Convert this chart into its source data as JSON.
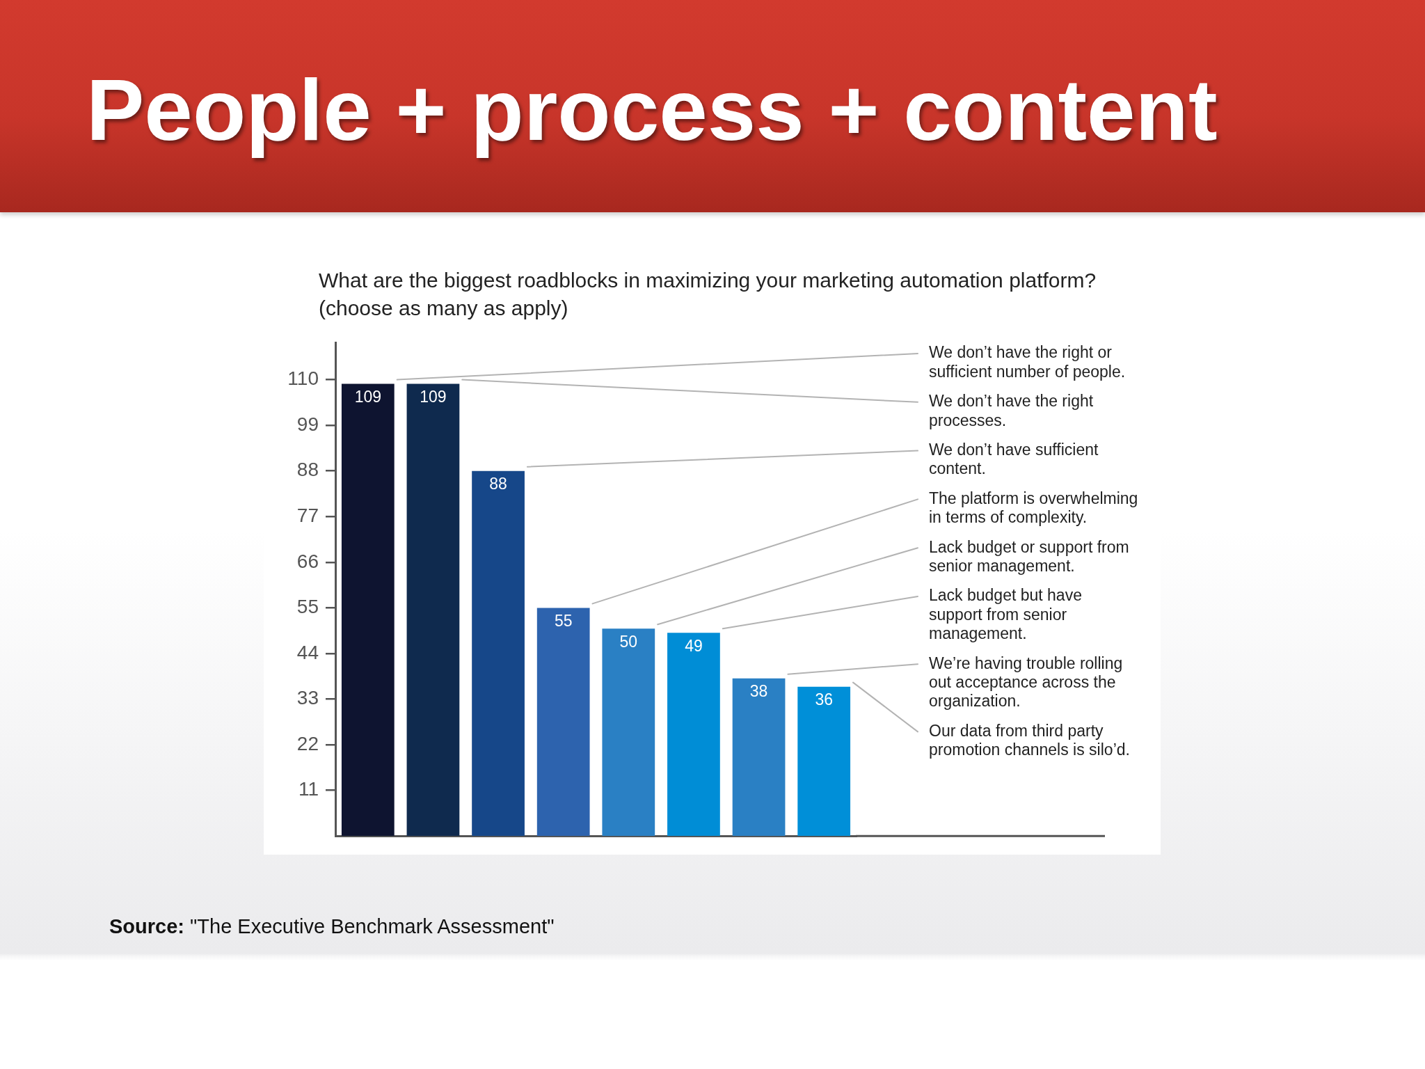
{
  "chart_data": {
    "type": "bar",
    "title": "People + process + content",
    "subtitle": "What are the biggest roadblocks in maximizing your marketing automation platform? (choose as many as apply)",
    "categories": [
      null,
      null,
      null,
      null,
      null,
      null,
      null,
      null
    ],
    "values": [
      109,
      109,
      88,
      55,
      50,
      49,
      38,
      36
    ],
    "colors": [
      "#0e1430",
      "#0f2a4e",
      "#164789",
      "#2d63ae",
      "#2a80c4",
      "#008dd6",
      "#2a80c4",
      "#008fd8"
    ],
    "ylim": [
      0,
      119
    ],
    "yticks": [
      11,
      22,
      33,
      44,
      55,
      66,
      77,
      88,
      99,
      110
    ],
    "grid": false,
    "legend": false,
    "data_labels": true,
    "annotations": [
      "We don’t have the right or sufficient number of people.",
      "We don’t have the right processes.",
      "We don’t have sufficient content.",
      "The platform is overwhelming in terms of complexity.",
      "Lack budget or support from senior management.",
      "Lack budget but have support from senior management.",
      "We’re having trouble rolling out acceptance across the organization.",
      "Our data from third party promotion channels is silo’d.",
      "Source: \"The Executive Benchmark Assessment\""
    ]
  }
}
